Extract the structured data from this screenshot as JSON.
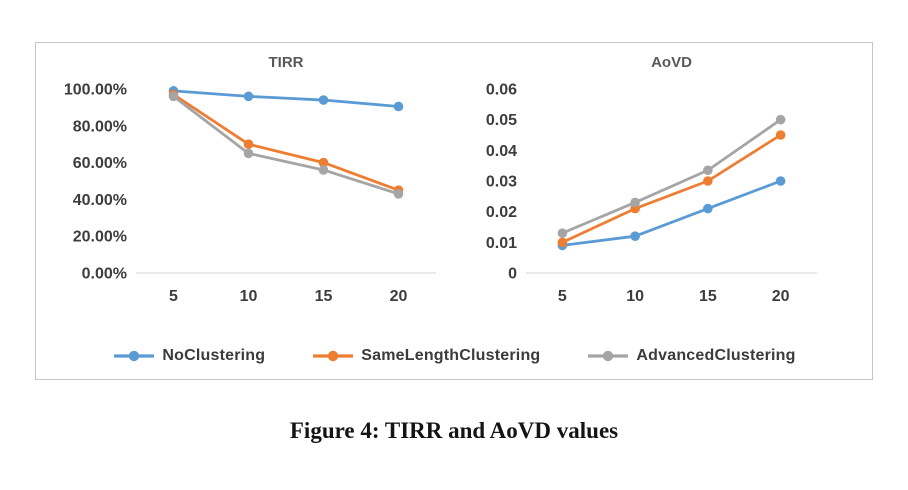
{
  "figure": {
    "caption": "Figure 4: TIRR and AoVD values"
  },
  "legend": {
    "items": [
      {
        "label": "NoClustering",
        "color": "#5B9BD5"
      },
      {
        "label": "SameLengthClustering",
        "color": "#ED7D31"
      },
      {
        "label": "AdvancedClustering",
        "color": "#A5A5A5"
      }
    ]
  },
  "chart_data": [
    {
      "type": "line",
      "title": "TIRR",
      "categories": [
        "5",
        "10",
        "15",
        "20"
      ],
      "series": [
        {
          "name": "NoClustering",
          "color": "#5B9BD5",
          "values": [
            0.99,
            0.96,
            0.94,
            0.905
          ]
        },
        {
          "name": "SameLengthClustering",
          "color": "#ED7D31",
          "values": [
            0.97,
            0.7,
            0.6,
            0.45
          ]
        },
        {
          "name": "AdvancedClustering",
          "color": "#A5A5A5",
          "values": [
            0.96,
            0.65,
            0.56,
            0.43
          ]
        }
      ],
      "xlabel": "",
      "ylabel": "",
      "ylim": [
        0,
        1.0
      ],
      "ytick_values": [
        0,
        0.2,
        0.4,
        0.6,
        0.8,
        1.0
      ],
      "ytick_labels": [
        "0.00%",
        "20.00%",
        "40.00%",
        "60.00%",
        "80.00%",
        "100.00%"
      ],
      "grid": false,
      "legend_position": "bottom-shared"
    },
    {
      "type": "line",
      "title": "AoVD",
      "categories": [
        "5",
        "10",
        "15",
        "20"
      ],
      "series": [
        {
          "name": "NoClustering",
          "color": "#5B9BD5",
          "values": [
            0.009,
            0.012,
            0.021,
            0.03
          ]
        },
        {
          "name": "SameLengthClustering",
          "color": "#ED7D31",
          "values": [
            0.01,
            0.021,
            0.03,
            0.045
          ]
        },
        {
          "name": "AdvancedClustering",
          "color": "#A5A5A5",
          "values": [
            0.013,
            0.023,
            0.0335,
            0.05
          ]
        }
      ],
      "xlabel": "",
      "ylabel": "",
      "ylim": [
        0,
        0.06
      ],
      "ytick_values": [
        0,
        0.01,
        0.02,
        0.03,
        0.04,
        0.05,
        0.06
      ],
      "ytick_labels": [
        "0",
        "0.01",
        "0.02",
        "0.03",
        "0.04",
        "0.05",
        "0.06"
      ],
      "grid": false,
      "legend_position": "bottom-shared"
    }
  ]
}
